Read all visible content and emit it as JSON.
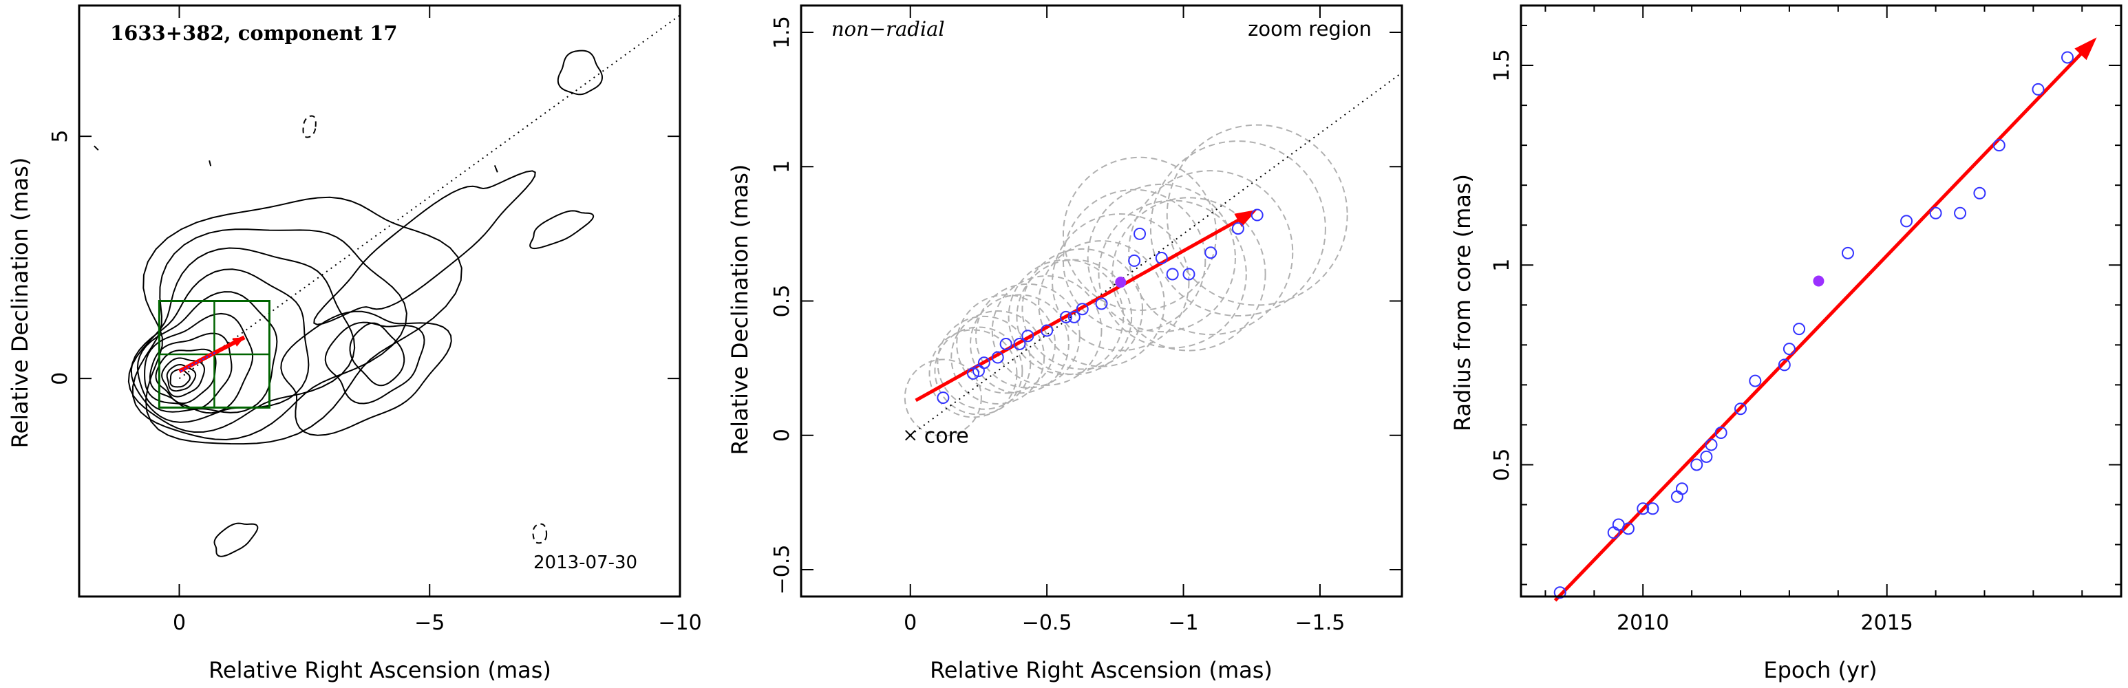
{
  "colors": {
    "arrow": "#ff0000",
    "fit_line": "#ff0000",
    "points_open": "#3333ff",
    "point_filled": "#9b30ff",
    "zoom_box": "#006400",
    "circles": "#b0b0b0",
    "contours": "#000000"
  },
  "chart_data": [
    {
      "type": "contour",
      "title": "1633+382, component 17",
      "epoch_label": "2013-07-30",
      "xlabel": "Relative Right Ascension (mas)",
      "ylabel": "Relative Declination (mas)",
      "xlim": [
        2,
        -10
      ],
      "ylim": [
        -4.5,
        7.7
      ],
      "xticks": [
        0,
        -5,
        -10
      ],
      "xtick_labels": [
        "0",
        "−5",
        "−10"
      ],
      "yticks": [
        0,
        5
      ],
      "ytick_labels": [
        "0",
        "5"
      ],
      "contour_levels": 11,
      "jet_direction": {
        "from": [
          0,
          0
        ],
        "to": [
          -10,
          7.5
        ]
      },
      "component_arrow": {
        "from": [
          0,
          0.15
        ],
        "to": [
          -1.3,
          0.85
        ]
      },
      "zoom_region": {
        "ra": [
          0.4,
          -1.8
        ],
        "dec": [
          -0.6,
          1.6
        ]
      }
    },
    {
      "type": "scatter",
      "title": "non−radial",
      "annotation": "zoom region",
      "core_label": "core",
      "xlabel": "Relative Right Ascension (mas)",
      "ylabel": "Relative Declination (mas)",
      "xlim": [
        0.4,
        -1.8
      ],
      "ylim": [
        -0.6,
        1.6
      ],
      "xticks": [
        0,
        -0.5,
        -1,
        -1.5
      ],
      "xtick_labels": [
        "0",
        "−0.5",
        "−1",
        "−1.5"
      ],
      "yticks": [
        -0.5,
        0,
        0.5,
        1,
        1.5
      ],
      "ytick_labels": [
        "−0.5",
        "0",
        "0.5",
        "1",
        "1.5"
      ],
      "series": [
        {
          "points": [
            {
              "ra": -0.12,
              "dec": 0.14,
              "r": 0.14
            },
            {
              "ra": -0.23,
              "dec": 0.23,
              "r": 0.16
            },
            {
              "ra": -0.25,
              "dec": 0.24,
              "r": 0.16
            },
            {
              "ra": -0.27,
              "dec": 0.27,
              "r": 0.17
            },
            {
              "ra": -0.32,
              "dec": 0.29,
              "r": 0.17
            },
            {
              "ra": -0.35,
              "dec": 0.34,
              "r": 0.18
            },
            {
              "ra": -0.4,
              "dec": 0.34,
              "r": 0.18
            },
            {
              "ra": -0.43,
              "dec": 0.37,
              "r": 0.19
            },
            {
              "ra": -0.5,
              "dec": 0.39,
              "r": 0.2
            },
            {
              "ra": -0.57,
              "dec": 0.44,
              "r": 0.21
            },
            {
              "ra": -0.6,
              "dec": 0.44,
              "r": 0.21
            },
            {
              "ra": -0.63,
              "dec": 0.47,
              "r": 0.22
            },
            {
              "ra": -0.7,
              "dec": 0.49,
              "r": 0.23
            },
            {
              "ra": -0.82,
              "dec": 0.65,
              "r": 0.26
            },
            {
              "ra": -0.84,
              "dec": 0.75,
              "r": 0.28
            },
            {
              "ra": -0.92,
              "dec": 0.66,
              "r": 0.27
            },
            {
              "ra": -0.96,
              "dec": 0.6,
              "r": 0.27
            },
            {
              "ra": -1.02,
              "dec": 0.6,
              "r": 0.28
            },
            {
              "ra": -1.1,
              "dec": 0.68,
              "r": 0.3
            },
            {
              "ra": -1.2,
              "dec": 0.77,
              "r": 0.32
            },
            {
              "ra": -1.27,
              "dec": 0.82,
              "r": 0.33
            }
          ]
        },
        {
          "points": [
            {
              "ra": -0.77,
              "dec": 0.57,
              "r": 0.25
            }
          ]
        }
      ],
      "fit_arrow": {
        "from": [
          -0.02,
          0.13
        ],
        "to": [
          -1.27,
          0.84
        ]
      },
      "jet_direction": {
        "from": [
          0,
          0
        ],
        "to": [
          -1.8,
          1.35
        ]
      }
    },
    {
      "type": "scatter",
      "xlabel": "Epoch (yr)",
      "ylabel": "Radius from core (mas)",
      "xlim": [
        2007.5,
        2019.8
      ],
      "ylim": [
        0.17,
        1.65
      ],
      "xticks": [
        2010,
        2015
      ],
      "xtick_labels": [
        "2010",
        "2015"
      ],
      "yticks": [
        0.5,
        1,
        1.5
      ],
      "ytick_labels": [
        "0.5",
        "1",
        "1.5"
      ],
      "series": [
        {
          "x": [
            2008.3,
            2009.4,
            2009.5,
            2009.7,
            2010.0,
            2010.2,
            2010.7,
            2010.8,
            2011.1,
            2011.3,
            2011.4,
            2011.6,
            2012.0,
            2012.3,
            2012.9,
            2013.0,
            2013.2,
            2014.2,
            2015.4,
            2016.0,
            2016.5,
            2016.9,
            2017.3,
            2018.1,
            2018.7
          ],
          "y": [
            0.18,
            0.33,
            0.35,
            0.34,
            0.39,
            0.39,
            0.42,
            0.44,
            0.5,
            0.52,
            0.55,
            0.58,
            0.64,
            0.71,
            0.75,
            0.79,
            0.84,
            1.03,
            1.11,
            1.13,
            1.13,
            1.18,
            1.3,
            1.44,
            1.52
          ]
        },
        {
          "x": [
            2013.6
          ],
          "y": [
            0.96
          ]
        }
      ],
      "fit_arrow": {
        "from": [
          2008.2,
          0.16
        ],
        "to": [
          2019.3,
          1.57
        ]
      }
    }
  ]
}
